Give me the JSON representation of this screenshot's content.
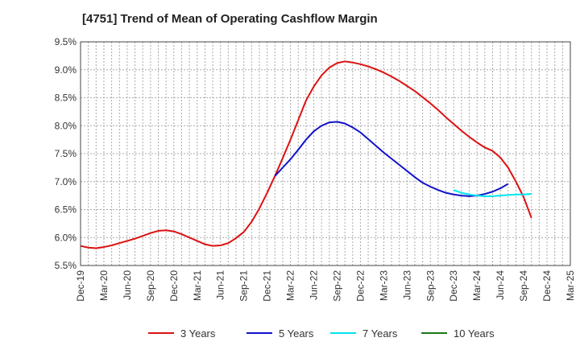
{
  "chart_data": {
    "type": "line",
    "title": "[4751]  Trend of Mean of Operating Cashflow Margin",
    "xlabel": "",
    "ylabel": "",
    "x_ticks": [
      "Dec-19",
      "Mar-20",
      "Jun-20",
      "Sep-20",
      "Dec-20",
      "Mar-21",
      "Jun-21",
      "Sep-21",
      "Dec-21",
      "Mar-22",
      "Jun-22",
      "Sep-22",
      "Dec-22",
      "Mar-23",
      "Jun-23",
      "Sep-23",
      "Dec-23",
      "Mar-24",
      "Jun-24",
      "Sep-24",
      "Dec-24",
      "Mar-25"
    ],
    "y_ticks": [
      "5.5%",
      "6.0%",
      "6.5%",
      "7.0%",
      "7.5%",
      "8.0%",
      "8.5%",
      "9.0%",
      "9.5%"
    ],
    "ylim": [
      5.5,
      9.5
    ],
    "grid": true,
    "legend_position": "bottom",
    "series": [
      {
        "name": "3 Years",
        "color": "#dd1111",
        "start_index": 0,
        "values": [
          5.85,
          5.82,
          5.81,
          5.83,
          5.86,
          5.9,
          5.94,
          5.98,
          6.03,
          6.08,
          6.12,
          6.13,
          6.11,
          6.06,
          6.0,
          5.94,
          5.88,
          5.85,
          5.86,
          5.9,
          5.99,
          6.1,
          6.28,
          6.52,
          6.8,
          7.1,
          7.42,
          7.75,
          8.1,
          8.45,
          8.7,
          8.9,
          9.04,
          9.12,
          9.15,
          9.13,
          9.1,
          9.06,
          9.01,
          8.95,
          8.88,
          8.8,
          8.71,
          8.62,
          8.51,
          8.4,
          8.28,
          8.15,
          8.03,
          7.91,
          7.8,
          7.7,
          7.61,
          7.55,
          7.43,
          7.25,
          7.0,
          6.72,
          6.35
        ]
      },
      {
        "name": "5 Years",
        "color": "#1111cc",
        "start_index": 25,
        "values": [
          7.1,
          7.25,
          7.4,
          7.57,
          7.75,
          7.9,
          8.0,
          8.06,
          8.07,
          8.04,
          7.97,
          7.88,
          7.76,
          7.64,
          7.52,
          7.41,
          7.3,
          7.19,
          7.08,
          6.98,
          6.91,
          6.85,
          6.8,
          6.77,
          6.75,
          6.74,
          6.75,
          6.78,
          6.82,
          6.88,
          6.96
        ]
      },
      {
        "name": "7 Years",
        "color": "#00e5ee",
        "start_index": 48,
        "values": [
          6.85,
          6.8,
          6.77,
          6.75,
          6.74,
          6.74,
          6.75,
          6.76,
          6.77,
          6.77,
          6.78
        ]
      },
      {
        "name": "10 Years",
        "color": "#1a7a1a",
        "start_index": 0,
        "values": []
      }
    ]
  }
}
